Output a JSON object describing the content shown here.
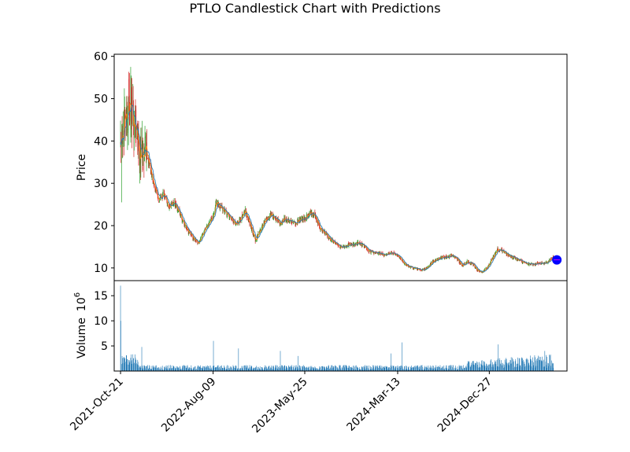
{
  "chart_data": {
    "type": "candlestick",
    "title": "PTLO Candlestick Chart with Predictions",
    "price_panel": {
      "ylabel": "Price",
      "ylim": [
        7,
        60.5
      ],
      "yticks": [
        10,
        20,
        30,
        40,
        50,
        60
      ],
      "up_color": "#2ca02c",
      "down_color": "#d62728",
      "moving_average_colors": [
        "#ff7f0e",
        "#1f77b4"
      ],
      "prediction_marker": {
        "date": "2025-07-28",
        "value": 11.9,
        "color": "#0000ff",
        "label_color": "#ff00ff"
      },
      "close_series": [
        [
          "2021-10-21",
          41.5
        ],
        [
          "2021-11-05",
          44.0
        ],
        [
          "2021-11-22",
          48.5
        ],
        [
          "2021-12-06",
          43.0
        ],
        [
          "2021-12-20",
          37.0
        ],
        [
          "2022-01-05",
          38.5
        ],
        [
          "2022-01-20",
          34.5
        ],
        [
          "2022-02-04",
          29.5
        ],
        [
          "2022-02-18",
          26.0
        ],
        [
          "2022-03-07",
          27.5
        ],
        [
          "2022-03-22",
          24.5
        ],
        [
          "2022-04-06",
          25.5
        ],
        [
          "2022-04-21",
          23.5
        ],
        [
          "2022-05-06",
          21.0
        ],
        [
          "2022-05-23",
          18.5
        ],
        [
          "2022-06-08",
          17.0
        ],
        [
          "2022-06-23",
          16.0
        ],
        [
          "2022-07-08",
          18.0
        ],
        [
          "2022-07-25",
          20.5
        ],
        [
          "2022-08-09",
          22.0
        ],
        [
          "2022-08-19",
          25.5
        ],
        [
          "2022-09-02",
          24.5
        ],
        [
          "2022-09-19",
          23.0
        ],
        [
          "2022-10-04",
          21.5
        ],
        [
          "2022-10-19",
          20.5
        ],
        [
          "2022-11-03",
          21.5
        ],
        [
          "2022-11-18",
          23.5
        ],
        [
          "2022-12-05",
          20.0
        ],
        [
          "2022-12-20",
          16.5
        ],
        [
          "2023-01-05",
          19.0
        ],
        [
          "2023-01-20",
          21.0
        ],
        [
          "2023-02-06",
          22.5
        ],
        [
          "2023-02-21",
          22.0
        ],
        [
          "2023-03-08",
          20.5
        ],
        [
          "2023-03-23",
          21.5
        ],
        [
          "2023-04-10",
          21.0
        ],
        [
          "2023-04-25",
          20.5
        ],
        [
          "2023-05-10",
          21.5
        ],
        [
          "2023-05-25",
          21.5
        ],
        [
          "2023-06-09",
          23.0
        ],
        [
          "2023-06-26",
          22.5
        ],
        [
          "2023-07-11",
          19.5
        ],
        [
          "2023-07-26",
          18.5
        ],
        [
          "2023-08-10",
          17.0
        ],
        [
          "2023-08-25",
          16.0
        ],
        [
          "2023-09-12",
          15.0
        ],
        [
          "2023-09-27",
          15.0
        ],
        [
          "2023-10-12",
          15.5
        ],
        [
          "2023-10-27",
          15.5
        ],
        [
          "2023-11-13",
          16.0
        ],
        [
          "2023-11-29",
          15.0
        ],
        [
          "2023-12-14",
          14.0
        ],
        [
          "2024-01-02",
          13.5
        ],
        [
          "2024-01-18",
          13.5
        ],
        [
          "2024-02-02",
          13.0
        ],
        [
          "2024-02-16",
          13.5
        ],
        [
          "2024-03-04",
          13.5
        ],
        [
          "2024-03-13",
          13.0
        ],
        [
          "2024-03-28",
          11.5
        ],
        [
          "2024-04-12",
          10.5
        ],
        [
          "2024-04-29",
          10.0
        ],
        [
          "2024-05-14",
          9.8
        ],
        [
          "2024-05-30",
          9.5
        ],
        [
          "2024-06-14",
          10.0
        ],
        [
          "2024-07-01",
          11.5
        ],
        [
          "2024-07-17",
          12.0
        ],
        [
          "2024-08-01",
          12.5
        ],
        [
          "2024-08-16",
          12.5
        ],
        [
          "2024-09-03",
          13.0
        ],
        [
          "2024-09-18",
          12.0
        ],
        [
          "2024-10-03",
          10.5
        ],
        [
          "2024-10-18",
          11.5
        ],
        [
          "2024-11-04",
          11.0
        ],
        [
          "2024-11-19",
          9.5
        ],
        [
          "2024-12-05",
          9.0
        ],
        [
          "2024-12-20",
          10.0
        ],
        [
          "2025-01-07",
          12.5
        ],
        [
          "2025-01-23",
          14.5
        ],
        [
          "2025-02-07",
          14.0
        ],
        [
          "2025-02-25",
          13.0
        ],
        [
          "2025-03-12",
          12.5
        ],
        [
          "2025-03-27",
          12.0
        ],
        [
          "2025-04-11",
          11.5
        ],
        [
          "2025-04-29",
          11.0
        ],
        [
          "2025-05-14",
          10.8
        ],
        [
          "2025-05-30",
          11.2
        ],
        [
          "2025-06-16",
          11.0
        ],
        [
          "2025-07-01",
          11.5
        ],
        [
          "2025-07-17",
          12.5
        ]
      ]
    },
    "volume_panel": {
      "ylabel": "Volume",
      "scale_label": "10",
      "scale_exponent": "6",
      "ylim": [
        0,
        18
      ],
      "yticks": [
        5,
        10,
        15
      ],
      "bar_color": "#1f77b4",
      "notable_spikes": [
        [
          "2021-10-21",
          17.0
        ],
        [
          "2021-10-22",
          10.0
        ],
        [
          "2021-12-27",
          4.8
        ],
        [
          "2022-08-10",
          6.0
        ],
        [
          "2022-10-28",
          4.5
        ],
        [
          "2023-03-09",
          4.0
        ],
        [
          "2023-05-04",
          3.0
        ],
        [
          "2024-02-21",
          3.5
        ],
        [
          "2024-03-27",
          5.7
        ],
        [
          "2025-01-24",
          5.3
        ],
        [
          "2025-06-20",
          4.0
        ]
      ]
    },
    "x_axis": {
      "type": "date",
      "range": [
        "2021-10-01",
        "2025-08-29"
      ],
      "tick_labels": [
        "2021-Oct-21",
        "2022-Aug-09",
        "2023-May-25",
        "2024-Mar-13",
        "2024-Dec-27"
      ]
    }
  }
}
